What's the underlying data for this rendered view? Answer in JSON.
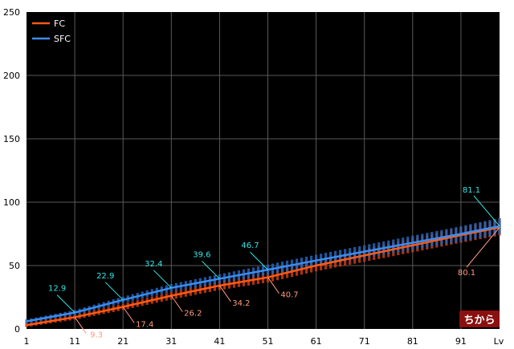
{
  "chart_data": {
    "type": "line",
    "title": "",
    "xlabel": "",
    "ylabel": "",
    "x_unit_label": "Lv",
    "badge": "ちから",
    "xlim": [
      1,
      99
    ],
    "ylim": [
      0,
      250
    ],
    "x_ticks": [
      1,
      11,
      21,
      31,
      41,
      51,
      61,
      71,
      81,
      91
    ],
    "y_ticks": [
      0,
      50,
      100,
      150,
      200,
      250
    ],
    "grid": true,
    "legend": "top-left",
    "colors": {
      "background": "#000000",
      "grid": "#5a5a5a",
      "fc": "#ff5a14",
      "sfc": "#3c8cf0",
      "fc_band": "#c83c14",
      "sfc_band": "#2864b4",
      "fc_label": "#ff9980",
      "sfc_label": "#33e6e6",
      "badge_bg": "#8b1010"
    },
    "series": [
      {
        "name": "FC",
        "key": "fc",
        "points": [
          [
            1,
            3
          ],
          [
            11,
            9.3
          ],
          [
            21,
            17.4
          ],
          [
            31,
            26.2
          ],
          [
            41,
            34.2
          ],
          [
            51,
            40.7
          ],
          [
            61,
            50
          ],
          [
            71,
            58
          ],
          [
            81,
            66
          ],
          [
            91,
            74
          ],
          [
            99,
            80.1
          ]
        ],
        "labels": [
          {
            "x": 11,
            "y": 9.3,
            "text": "9.3"
          },
          {
            "x": 21,
            "y": 17.4,
            "text": "17.4"
          },
          {
            "x": 31,
            "y": 26.2,
            "text": "26.2"
          },
          {
            "x": 41,
            "y": 34.2,
            "text": "34.2"
          },
          {
            "x": 51,
            "y": 40.7,
            "text": "40.7"
          },
          {
            "x": 99,
            "y": 80.1,
            "text": "80.1"
          }
        ]
      },
      {
        "name": "SFC",
        "key": "sfc",
        "points": [
          [
            1,
            6
          ],
          [
            11,
            12.9
          ],
          [
            21,
            22.9
          ],
          [
            31,
            32.4
          ],
          [
            41,
            39.6
          ],
          [
            51,
            46.7
          ],
          [
            61,
            54
          ],
          [
            71,
            61
          ],
          [
            81,
            68
          ],
          [
            91,
            75
          ],
          [
            99,
            81.1
          ]
        ],
        "labels": [
          {
            "x": 11,
            "y": 12.9,
            "text": "12.9"
          },
          {
            "x": 21,
            "y": 22.9,
            "text": "22.9"
          },
          {
            "x": 31,
            "y": 32.4,
            "text": "32.4"
          },
          {
            "x": 41,
            "y": 39.6,
            "text": "39.6"
          },
          {
            "x": 51,
            "y": 46.7,
            "text": "46.7"
          },
          {
            "x": 99,
            "y": 81.1,
            "text": "81.1"
          }
        ]
      }
    ]
  }
}
